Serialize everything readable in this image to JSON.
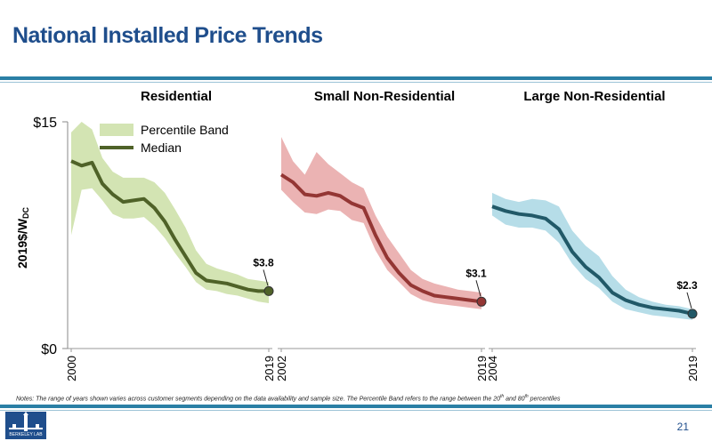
{
  "slide": {
    "title": "National Installed Price Trends",
    "notes_text": "Notes: The range of years shown varies across customer segments depending on the data availability and sample size. The Percentile Band refers to the range between the 20",
    "notes_sup1": "th",
    "notes_mid": " and 80",
    "notes_sup2": "th",
    "notes_end": " percentiles",
    "logo_text": "BERKELEY LAB",
    "page_number": "21"
  },
  "chart_data": {
    "type": "line",
    "y_label_main": "2019$/W",
    "y_label_sub": "DC",
    "ylim": [
      0,
      15
    ],
    "y_ticks": [
      "$15",
      "$0"
    ],
    "legend": {
      "band_label": "Percentile Band",
      "median_label": "Median",
      "placement": "top-left"
    },
    "panels": [
      {
        "title": "Residential",
        "x_start": 2000,
        "x_end": 2019,
        "x_ticks": [
          "2000",
          "2019"
        ],
        "median": [
          12.4,
          12.1,
          12.3,
          10.9,
          10.2,
          9.7,
          9.8,
          9.9,
          9.3,
          8.4,
          7.2,
          6.1,
          5.0,
          4.5,
          4.4,
          4.3,
          4.1,
          3.9,
          3.8,
          3.8
        ],
        "band_low": [
          7.5,
          10.5,
          10.6,
          9.8,
          8.9,
          8.6,
          8.6,
          8.7,
          8.1,
          7.3,
          6.3,
          5.4,
          4.4,
          3.9,
          3.8,
          3.6,
          3.5,
          3.3,
          3.1,
          3.0
        ],
        "band_high": [
          14.3,
          15.0,
          14.5,
          12.6,
          11.7,
          11.3,
          11.3,
          11.3,
          11.0,
          10.3,
          9.2,
          8.0,
          6.5,
          5.6,
          5.3,
          5.1,
          4.9,
          4.6,
          4.5,
          4.4
        ],
        "end_label": "$3.8",
        "color_band": "#d3e4b3",
        "color_median": "#4f6228"
      },
      {
        "title": "Small Non-Residential",
        "x_start": 2002,
        "x_end": 2019,
        "x_ticks": [
          "2002",
          "2019"
        ],
        "median": [
          11.5,
          11.0,
          10.2,
          10.1,
          10.3,
          10.1,
          9.6,
          9.3,
          7.5,
          6.0,
          5.0,
          4.2,
          3.8,
          3.5,
          3.4,
          3.3,
          3.2,
          3.1
        ],
        "band_low": [
          10.5,
          9.7,
          9.0,
          8.9,
          9.2,
          9.1,
          8.5,
          8.3,
          6.5,
          5.2,
          4.4,
          3.6,
          3.2,
          3.0,
          2.9,
          2.8,
          2.7,
          2.6
        ],
        "band_high": [
          14.0,
          12.4,
          11.5,
          13.0,
          12.2,
          11.6,
          11.0,
          10.6,
          8.8,
          7.4,
          6.3,
          5.2,
          4.6,
          4.3,
          4.1,
          3.9,
          3.8,
          3.7
        ],
        "end_label": "$3.1",
        "color_band": "#ebb3b3",
        "color_median": "#943634"
      },
      {
        "title": "Large Non-Residential",
        "x_start": 2004,
        "x_end": 2019,
        "x_ticks": [
          "2004",
          "2019"
        ],
        "median": [
          9.4,
          9.1,
          8.9,
          8.8,
          8.6,
          7.9,
          6.4,
          5.4,
          4.7,
          3.7,
          3.2,
          2.9,
          2.7,
          2.6,
          2.5,
          2.3
        ],
        "band_low": [
          8.8,
          8.2,
          8.0,
          8.0,
          7.8,
          7.0,
          5.6,
          4.6,
          4.0,
          3.1,
          2.6,
          2.4,
          2.2,
          2.1,
          2.0,
          1.9
        ],
        "band_high": [
          10.3,
          9.9,
          9.7,
          9.9,
          9.8,
          9.4,
          7.8,
          6.8,
          6.1,
          4.8,
          3.9,
          3.4,
          3.1,
          2.9,
          2.8,
          2.6
        ],
        "end_label": "$2.3",
        "color_band": "#b6dde8",
        "color_median": "#215968"
      }
    ]
  }
}
